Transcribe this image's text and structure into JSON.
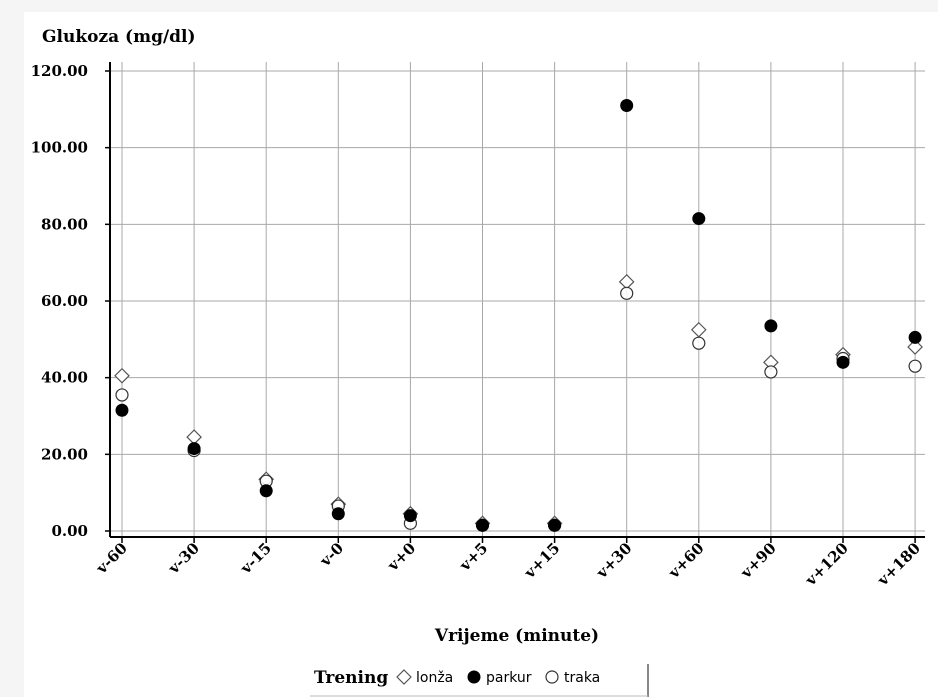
{
  "chart_data": {
    "type": "scatter",
    "title": "",
    "ylabel": "Glukoza (mg/dl)",
    "xlabel": "Vrijeme (minute)",
    "categories": [
      "v-60",
      "v-30",
      "v-15",
      "v-0",
      "v+0",
      "v+5",
      "v+15",
      "v+30",
      "v+60",
      "v+90",
      "v+120",
      "v+180"
    ],
    "ylim": [
      0,
      120
    ],
    "yticks": [
      "0.00",
      "20.00",
      "40.00",
      "60.00",
      "80.00",
      "100.00",
      "120.00"
    ],
    "grid": true,
    "legend": {
      "title": "Trening",
      "placement": "bottom"
    },
    "series": [
      {
        "name": "lonža",
        "marker": "diamond-open",
        "values": [
          40.5,
          24.5,
          13.5,
          7.0,
          4.5,
          2.0,
          2.0,
          65.0,
          52.5,
          44.0,
          46.0,
          48.0
        ]
      },
      {
        "name": "parkur",
        "marker": "circle-filled",
        "values": [
          31.5,
          21.5,
          10.5,
          4.5,
          4.0,
          1.5,
          1.5,
          111.0,
          81.5,
          53.5,
          44.0,
          50.5
        ]
      },
      {
        "name": "traka",
        "marker": "circle-open",
        "values": [
          35.5,
          21.0,
          13.0,
          6.5,
          2.0,
          1.5,
          1.5,
          62.0,
          49.0,
          41.5,
          45.0,
          43.0
        ]
      }
    ]
  }
}
